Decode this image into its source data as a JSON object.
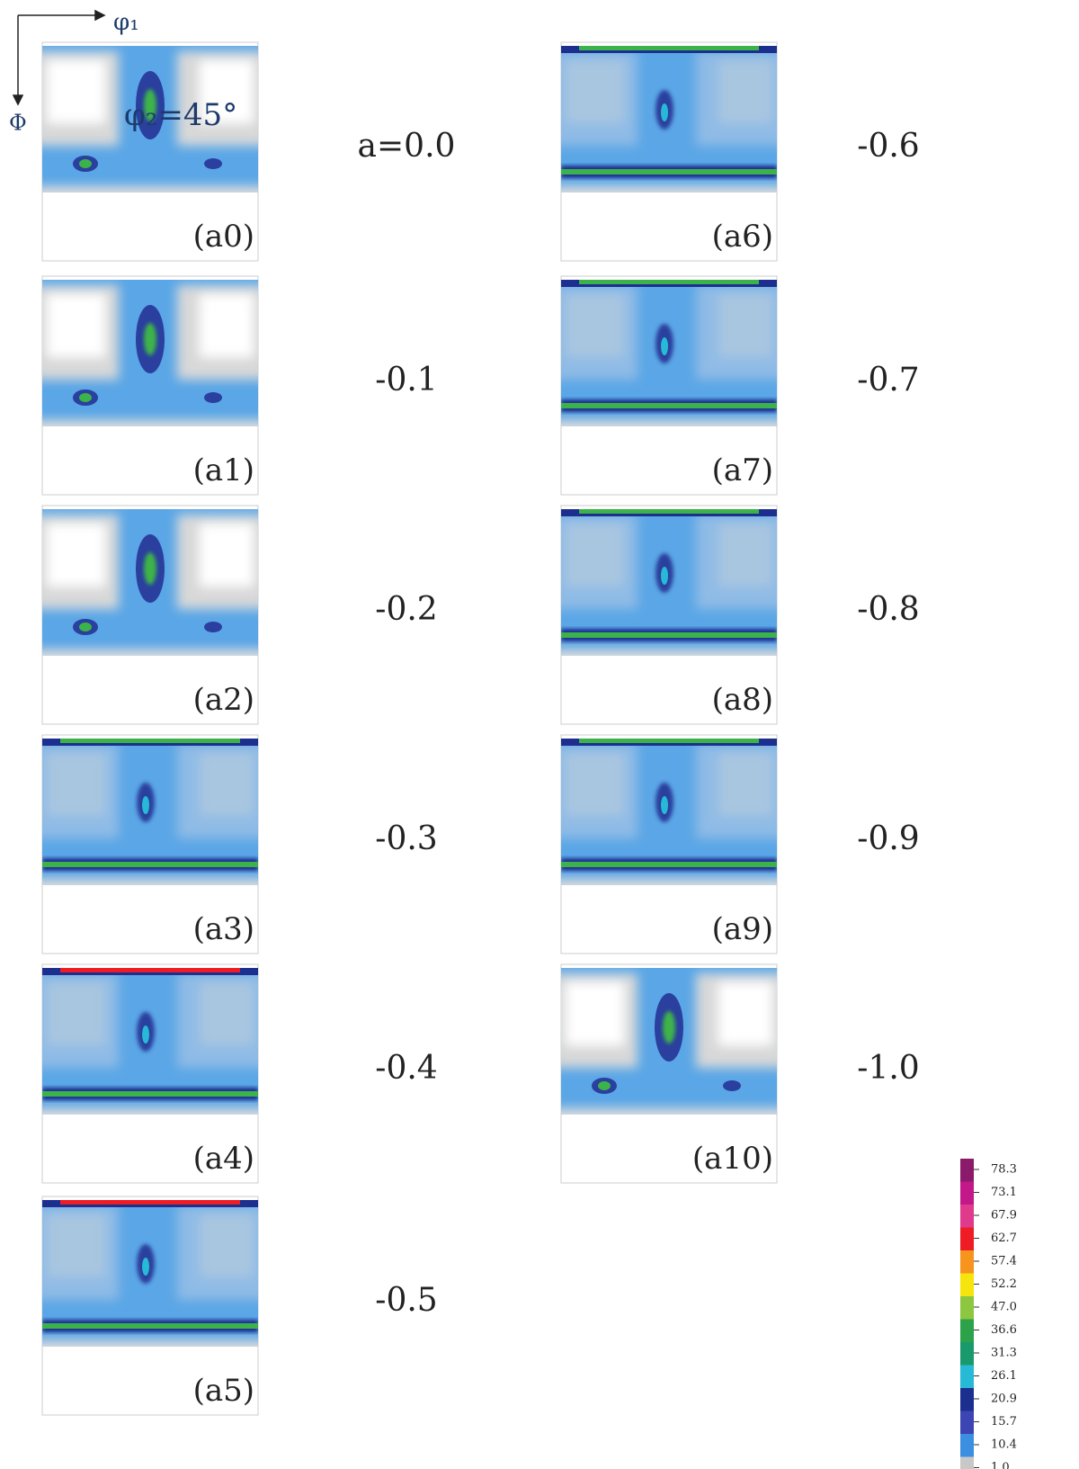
{
  "figure": {
    "axis_labels": {
      "phi1": "φ₁",
      "Phi": "Φ",
      "phi2": "φ₂=45°"
    },
    "panels": [
      {
        "label": "(a0)",
        "param": "a=0.0"
      },
      {
        "label": "(a1)",
        "param": "-0.1"
      },
      {
        "label": "(a2)",
        "param": "-0.2"
      },
      {
        "label": "(a3)",
        "param": "-0.3"
      },
      {
        "label": "(a4)",
        "param": "-0.4"
      },
      {
        "label": "(a5)",
        "param": "-0.5"
      },
      {
        "label": "(a6)",
        "param": "-0.6"
      },
      {
        "label": "(a7)",
        "param": "-0.7"
      },
      {
        "label": "(a8)",
        "param": "-0.8"
      },
      {
        "label": "(a9)",
        "param": "-0.9"
      },
      {
        "label": "(a10)",
        "param": "-1.0"
      }
    ],
    "colorbar": {
      "ticks": [
        78.3,
        73.1,
        67.9,
        62.7,
        57.4,
        52.2,
        {
          "value": 47,
          "label": "47.0"
        },
        36.6,
        31.3,
        26.1,
        20.9,
        15.7,
        10.4,
        {
          "value": 1,
          "label": "1.0"
        }
      ],
      "colors": [
        "#8b1a6b",
        "#c2188a",
        "#e03a8c",
        "#ee1c24",
        "#f7941d",
        "#f5e50c",
        "#8dc63f",
        "#2ca24a",
        "#1a9a6c",
        "#27b9d6",
        "#1c2f8f",
        "#3d45b5",
        "#3c8fe0",
        "#c8c8c8"
      ]
    }
  }
}
